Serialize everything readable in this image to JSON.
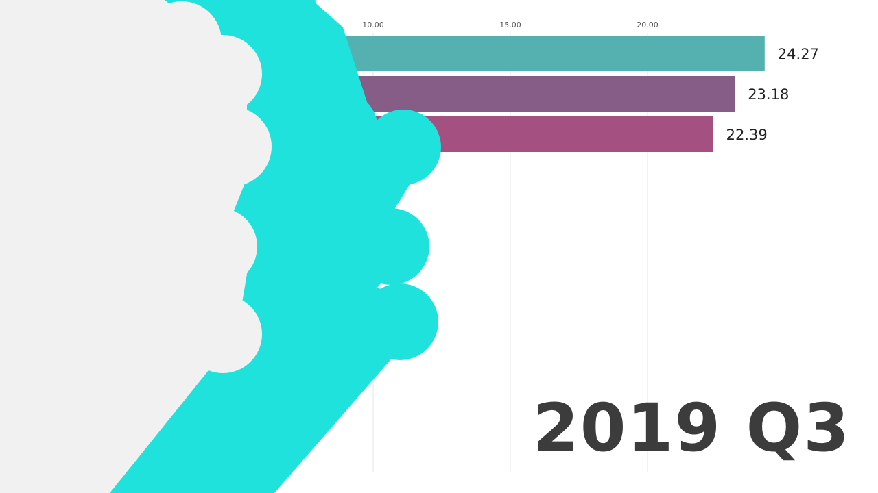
{
  "chart_data": {
    "type": "bar",
    "orientation": "horizontal",
    "period": "2019 Q3",
    "x_ticks": [
      10.0,
      15.0,
      20.0
    ],
    "x_tick_labels": [
      "10.00",
      "15.00",
      "20.00"
    ],
    "values": [
      24.27,
      23.18,
      22.39
    ],
    "value_labels": [
      "24.27",
      "23.18",
      "22.39"
    ],
    "bar_colors": [
      "#55b1b0",
      "#865d86",
      "#a45181"
    ],
    "grid": true,
    "category_labels_hidden_by_overlay": true
  },
  "overlay": {
    "type": "transition-wipe",
    "colors": [
      "#f1f1f1",
      "#20e2dc"
    ]
  }
}
